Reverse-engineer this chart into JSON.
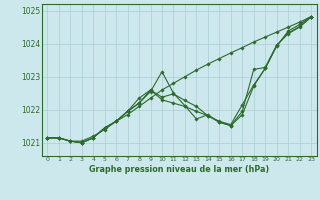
{
  "title": "Graphe pression niveau de la mer (hPa)",
  "bg_color": "#cce8ec",
  "grid_color": "#aacdd4",
  "line_color": "#2d6a2d",
  "xlim": [
    -0.5,
    23.5
  ],
  "ylim": [
    1020.6,
    1025.2
  ],
  "xticks": [
    0,
    1,
    2,
    3,
    4,
    5,
    6,
    7,
    8,
    9,
    10,
    11,
    12,
    13,
    14,
    15,
    16,
    17,
    18,
    19,
    20,
    21,
    22,
    23
  ],
  "yticks": [
    1021,
    1022,
    1023,
    1024,
    1025
  ],
  "series1": [
    1021.15,
    1021.15,
    1021.05,
    1021.05,
    1021.2,
    1021.4,
    1021.65,
    1021.85,
    1022.1,
    1022.35,
    1022.6,
    1022.8,
    1023.0,
    1023.2,
    1023.38,
    1023.55,
    1023.72,
    1023.88,
    1024.05,
    1024.2,
    1024.35,
    1024.5,
    1024.65,
    1024.82
  ],
  "series2": [
    1021.15,
    1021.15,
    1021.05,
    1021.0,
    1021.15,
    1021.45,
    1021.65,
    1021.95,
    1022.35,
    1022.6,
    1022.3,
    1022.2,
    1022.1,
    1021.95,
    1021.82,
    1021.65,
    1021.55,
    1022.15,
    1022.75,
    1023.25,
    1023.95,
    1024.3,
    1024.5,
    1024.8
  ],
  "series3": [
    1021.15,
    1021.15,
    1021.05,
    1021.0,
    1021.15,
    1021.45,
    1021.65,
    1021.95,
    1022.2,
    1022.6,
    1022.38,
    1022.48,
    1022.28,
    1022.1,
    1021.82,
    1021.62,
    1021.52,
    1021.85,
    1022.72,
    1023.25,
    1023.92,
    1024.38,
    1024.58,
    1024.82
  ],
  "series4": [
    1021.15,
    1021.15,
    1021.05,
    1021.0,
    1021.15,
    1021.45,
    1021.65,
    1021.95,
    1022.2,
    1022.55,
    1023.15,
    1022.5,
    1022.12,
    1021.72,
    1021.85,
    1021.62,
    1021.52,
    1021.95,
    1023.22,
    1023.28,
    1023.95,
    1024.32,
    1024.52,
    1024.82
  ]
}
